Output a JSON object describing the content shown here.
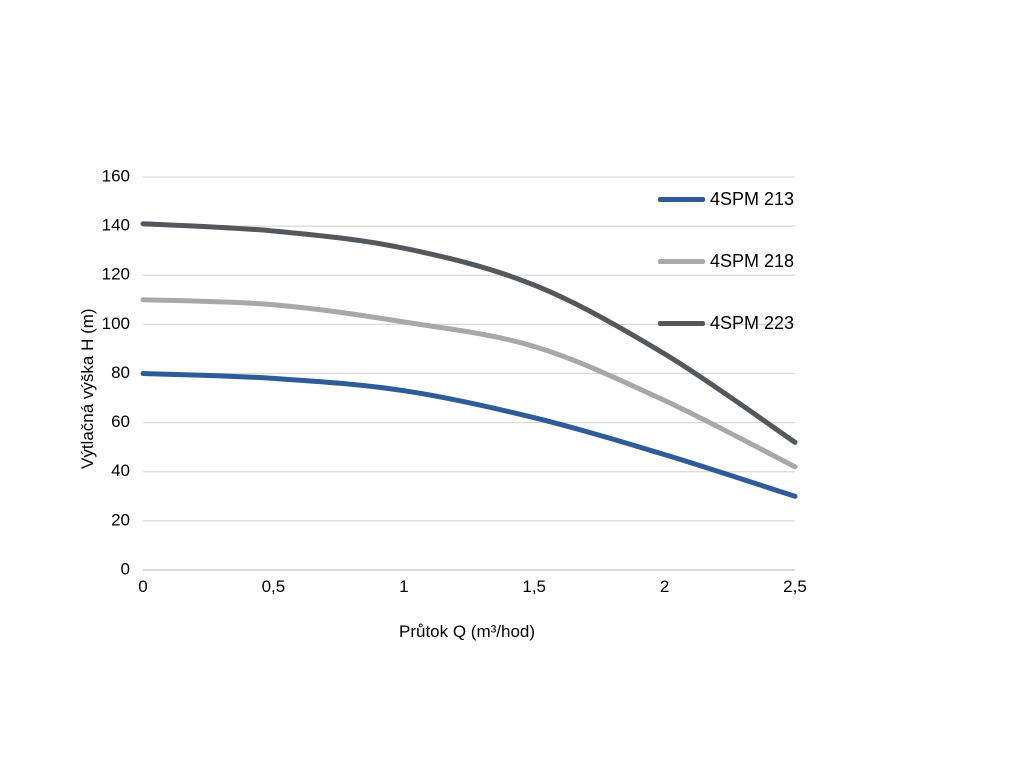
{
  "chart_data": {
    "type": "line",
    "title": "",
    "xlabel": "Průtok Q (m³/hod)",
    "ylabel": "Výtlačná výška H (m)",
    "xlim": [
      0,
      2.5
    ],
    "ylim": [
      0,
      160
    ],
    "x": [
      0,
      0.5,
      1,
      1.5,
      2,
      2.5
    ],
    "x_tick_labels": [
      "0",
      "0,5",
      "1",
      "1,5",
      "2",
      "2,5"
    ],
    "y_ticks": [
      0,
      20,
      40,
      60,
      80,
      100,
      120,
      140,
      160
    ],
    "grid": "horizontal",
    "grid_color": "#d9d9d9",
    "axis_line_color": "#bfbfbf",
    "legend_position": "inside-top-right",
    "series": [
      {
        "name": "4SPM 213",
        "color": "#2E5C98",
        "values": [
          80,
          78,
          73,
          62,
          47,
          30
        ]
      },
      {
        "name": "4SPM 218",
        "color": "#A8A8A8",
        "values": [
          110,
          108,
          101,
          91,
          69,
          42
        ]
      },
      {
        "name": "4SPM 223",
        "color": "#54585A",
        "values": [
          141,
          138,
          131,
          116,
          88,
          52
        ]
      }
    ]
  },
  "legend": {
    "items": [
      "4SPM 213",
      "4SPM 218",
      "4SPM 223"
    ]
  }
}
